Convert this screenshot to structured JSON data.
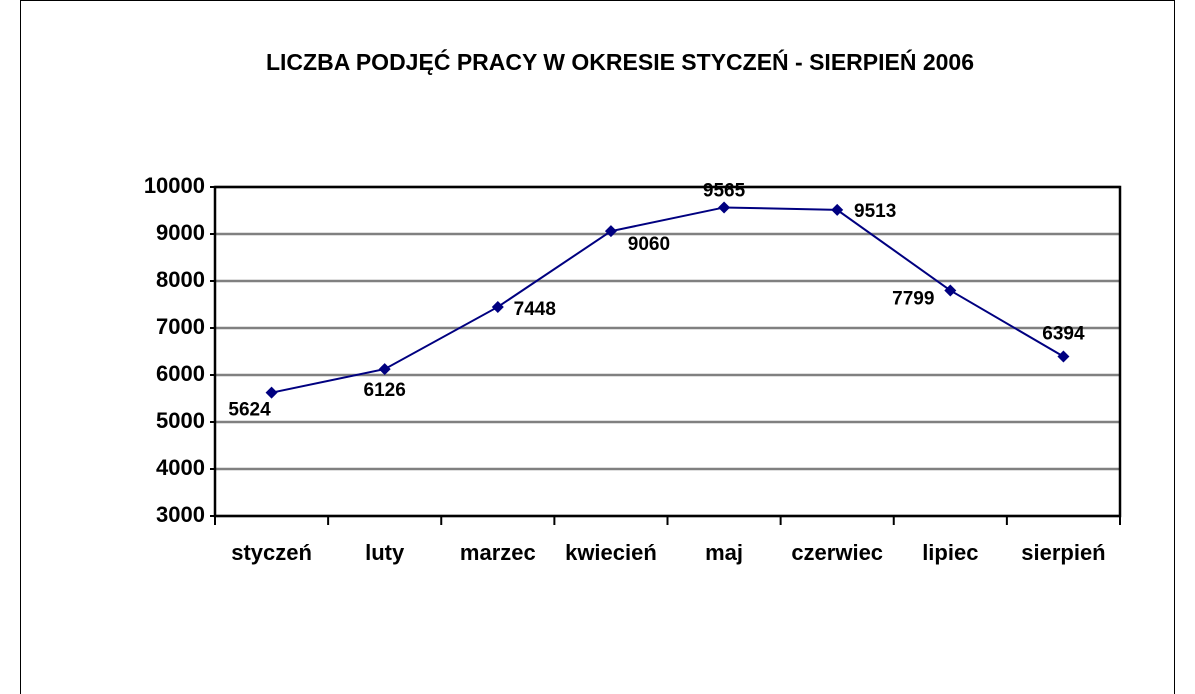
{
  "chart_data": {
    "type": "line",
    "title": "LICZBA PODJĘĆ PRACY W OKRESIE STYCZEŃ - SIERPIEŃ 2006",
    "categories": [
      "styczeń",
      "luty",
      "marzec",
      "kwiecień",
      "maj",
      "czerwiec",
      "lipiec",
      "sierpień"
    ],
    "values": [
      5624,
      6126,
      7448,
      9060,
      9565,
      9513,
      7799,
      6394
    ],
    "color": "#000080",
    "ylim": [
      3000,
      10000
    ],
    "yticks": [
      3000,
      4000,
      5000,
      6000,
      7000,
      8000,
      9000,
      10000
    ],
    "grid": true
  }
}
